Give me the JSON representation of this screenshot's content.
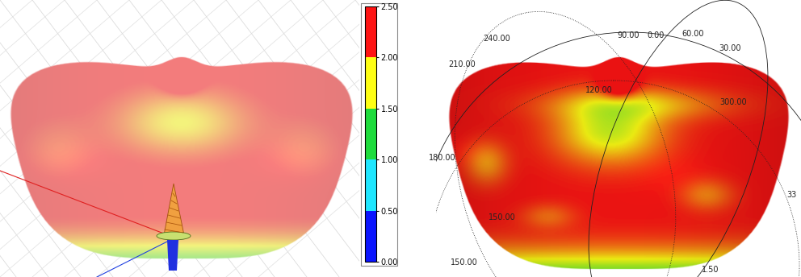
{
  "chart_data": [
    {
      "type": "radiation_pattern_3d",
      "colorbar": {
        "range": [
          0,
          2.5
        ],
        "ticks": [
          {
            "value": 0,
            "label": "0.00"
          },
          {
            "value": 0.5,
            "label": "0.50"
          },
          {
            "value": 1.0,
            "label": "1.00"
          },
          {
            "value": 1.5,
            "label": "1.50"
          },
          {
            "value": 2.0,
            "label": "2.00"
          },
          {
            "value": 2.5,
            "label": "2.50"
          }
        ],
        "colors": [
          "#0a14ff",
          "#1ee6ff",
          "#1edc3c",
          "#ffff14",
          "#ff1414"
        ]
      }
    },
    {
      "type": "radiation_pattern_3d_polar",
      "angle_labels": [
        "240.00",
        "90.00",
        "0.00",
        "60.00",
        "30.00",
        "210.00",
        "120.00",
        "300.00",
        "180.00",
        "150.00",
        "150.00",
        "33"
      ],
      "radius_labels": [
        "1.50"
      ]
    }
  ]
}
